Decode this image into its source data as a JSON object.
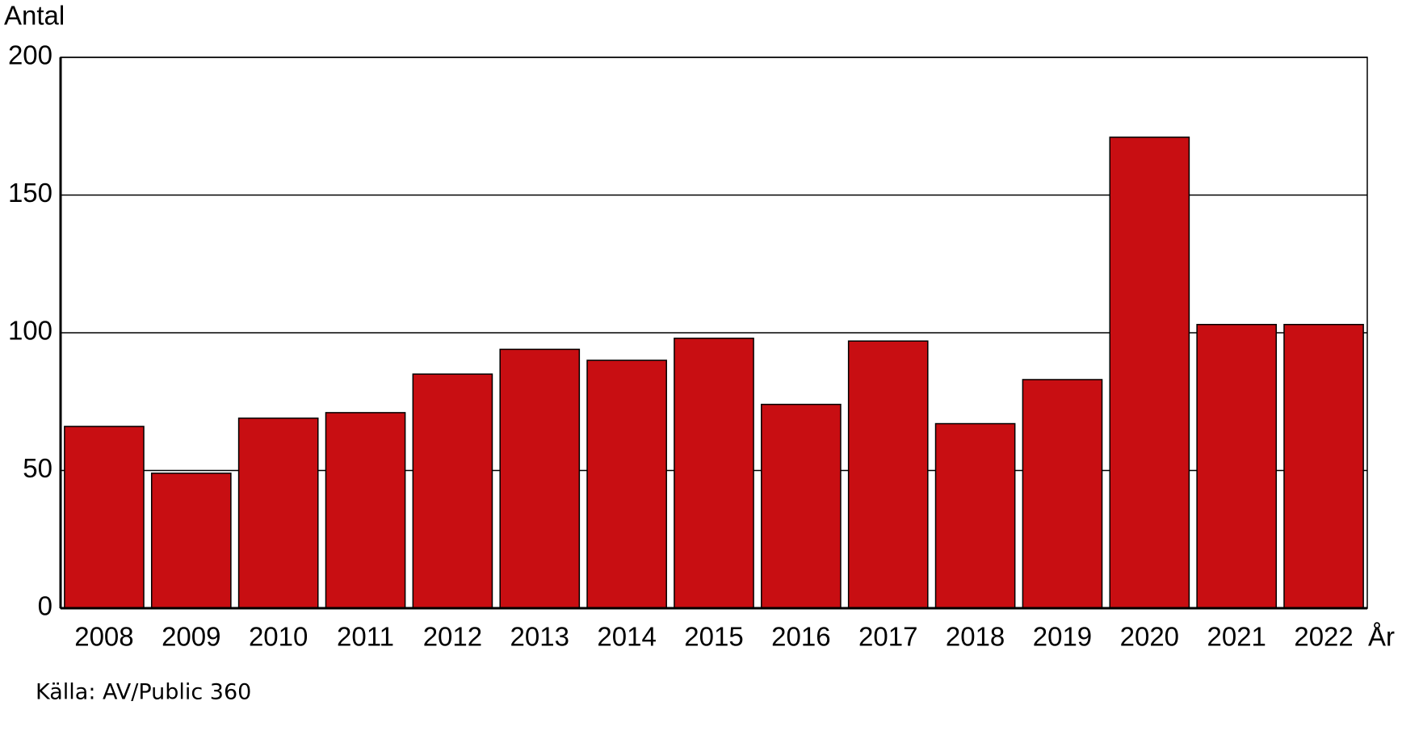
{
  "chart_data": {
    "type": "bar",
    "ylabel": "Antal",
    "xlabel": "År",
    "source": "Källa: AV/Public 360",
    "categories": [
      "2008",
      "2009",
      "2010",
      "2011",
      "2012",
      "2013",
      "2014",
      "2015",
      "2016",
      "2017",
      "2018",
      "2019",
      "2020",
      "2021",
      "2022"
    ],
    "values": [
      66,
      49,
      69,
      71,
      85,
      94,
      90,
      98,
      74,
      97,
      67,
      83,
      171,
      103,
      103
    ],
    "color": "#c80e12",
    "ylim": [
      0,
      200
    ],
    "yticks": [
      0,
      50,
      100,
      150,
      200
    ],
    "grid": true
  }
}
